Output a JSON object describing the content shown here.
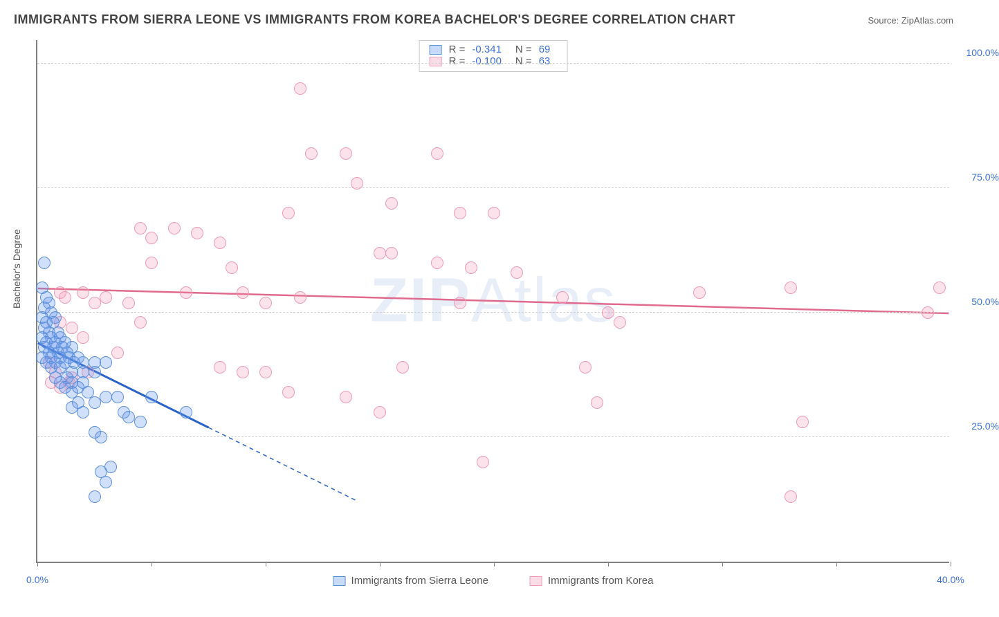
{
  "title": "IMMIGRANTS FROM SIERRA LEONE VS IMMIGRANTS FROM KOREA BACHELOR'S DEGREE CORRELATION CHART",
  "source": "Source: ZipAtlas.com",
  "ylabel": "Bachelor's Degree",
  "watermark_a": "ZIP",
  "watermark_b": "Atlas",
  "chart": {
    "type": "scatter-correlation",
    "background_color": "#ffffff",
    "grid_color": "#d0d0d0",
    "axis_color": "#808080",
    "tick_label_color": "#3b6fd6",
    "xlim": [
      0,
      40
    ],
    "ylim": [
      0,
      105
    ],
    "xticks": [
      0,
      5,
      10,
      15,
      20,
      25,
      30,
      35,
      40
    ],
    "xtick_labels": [
      "0.0%",
      "",
      "",
      "",
      "",
      "",
      "",
      "",
      "40.0%"
    ],
    "yticks": [
      25,
      50,
      75,
      100
    ],
    "ytick_labels": [
      "25.0%",
      "50.0%",
      "75.0%",
      "100.0%"
    ],
    "series_a": {
      "name": "Immigrants from Sierra Leone",
      "color_fill": "rgba(100,149,237,0.30)",
      "color_stroke": "#5b8fd9",
      "trend_color": "#2b62c9",
      "R": "-0.341",
      "N": "69",
      "trend": {
        "x0": 0,
        "y0": 44,
        "x1": 7.5,
        "y1": 27,
        "extend_x": 14,
        "extend_y": 12
      },
      "points": [
        [
          0.3,
          60
        ],
        [
          0.2,
          55
        ],
        [
          0.4,
          53
        ],
        [
          0.5,
          52
        ],
        [
          0.3,
          51
        ],
        [
          0.6,
          50
        ],
        [
          0.2,
          49
        ],
        [
          0.8,
          49
        ],
        [
          0.4,
          48
        ],
        [
          0.7,
          48
        ],
        [
          0.3,
          47
        ],
        [
          0.5,
          46
        ],
        [
          0.9,
          46
        ],
        [
          0.2,
          45
        ],
        [
          0.6,
          45
        ],
        [
          1.0,
          45
        ],
        [
          0.4,
          44
        ],
        [
          0.8,
          44
        ],
        [
          1.2,
          44
        ],
        [
          0.3,
          43
        ],
        [
          0.7,
          43
        ],
        [
          1.1,
          43
        ],
        [
          1.5,
          43
        ],
        [
          0.5,
          42
        ],
        [
          0.9,
          42
        ],
        [
          1.3,
          42
        ],
        [
          0.2,
          41
        ],
        [
          0.6,
          41
        ],
        [
          1.0,
          41
        ],
        [
          1.4,
          41
        ],
        [
          1.8,
          41
        ],
        [
          0.4,
          40
        ],
        [
          0.8,
          40
        ],
        [
          1.2,
          40
        ],
        [
          1.6,
          40
        ],
        [
          2.0,
          40
        ],
        [
          2.5,
          40
        ],
        [
          3.0,
          40
        ],
        [
          0.6,
          39
        ],
        [
          1.0,
          39
        ],
        [
          1.5,
          38
        ],
        [
          2.0,
          38
        ],
        [
          2.5,
          38
        ],
        [
          0.8,
          37
        ],
        [
          1.3,
          37
        ],
        [
          1.0,
          36
        ],
        [
          1.5,
          36
        ],
        [
          2.0,
          36
        ],
        [
          1.2,
          35
        ],
        [
          1.8,
          35
        ],
        [
          1.5,
          34
        ],
        [
          2.2,
          34
        ],
        [
          3.0,
          33
        ],
        [
          3.5,
          33
        ],
        [
          1.8,
          32
        ],
        [
          2.5,
          32
        ],
        [
          1.5,
          31
        ],
        [
          2.0,
          30
        ],
        [
          3.8,
          30
        ],
        [
          4.0,
          29
        ],
        [
          5.0,
          33
        ],
        [
          6.5,
          30
        ],
        [
          4.5,
          28
        ],
        [
          2.5,
          26
        ],
        [
          2.8,
          25
        ],
        [
          3.2,
          19
        ],
        [
          2.8,
          18
        ],
        [
          3.0,
          16
        ],
        [
          2.5,
          13
        ]
      ]
    },
    "series_b": {
      "name": "Immigrants from Korea",
      "color_fill": "rgba(244,143,177,0.25)",
      "color_stroke": "#ec9ab6",
      "trend_color": "#e06a8e",
      "R": "-0.100",
      "N": "63",
      "trend": {
        "x0": 0,
        "y0": 55,
        "x1": 40,
        "y1": 50
      },
      "points": [
        [
          11.5,
          95
        ],
        [
          12.0,
          82
        ],
        [
          13.5,
          82
        ],
        [
          17.5,
          82
        ],
        [
          14.0,
          76
        ],
        [
          15.5,
          72
        ],
        [
          11.0,
          70
        ],
        [
          18.5,
          70
        ],
        [
          20.0,
          70
        ],
        [
          4.5,
          67
        ],
        [
          6.0,
          67
        ],
        [
          5.0,
          65
        ],
        [
          7.0,
          66
        ],
        [
          8.0,
          64
        ],
        [
          15.0,
          62
        ],
        [
          15.5,
          62
        ],
        [
          5.0,
          60
        ],
        [
          8.5,
          59
        ],
        [
          17.5,
          60
        ],
        [
          19.0,
          59
        ],
        [
          21.0,
          58
        ],
        [
          1.0,
          54
        ],
        [
          1.2,
          53
        ],
        [
          2.0,
          54
        ],
        [
          2.5,
          52
        ],
        [
          3.0,
          53
        ],
        [
          4.0,
          52
        ],
        [
          6.5,
          54
        ],
        [
          9.0,
          54
        ],
        [
          10.0,
          52
        ],
        [
          11.5,
          53
        ],
        [
          18.5,
          52
        ],
        [
          23.0,
          53
        ],
        [
          25.0,
          50
        ],
        [
          25.5,
          48
        ],
        [
          29.0,
          54
        ],
        [
          33.0,
          55
        ],
        [
          39.5,
          55
        ],
        [
          39.0,
          50
        ],
        [
          1.0,
          48
        ],
        [
          1.5,
          47
        ],
        [
          2.0,
          45
        ],
        [
          3.5,
          42
        ],
        [
          0.5,
          40
        ],
        [
          0.8,
          38
        ],
        [
          1.5,
          37
        ],
        [
          8.0,
          39
        ],
        [
          9.0,
          38
        ],
        [
          10.0,
          38
        ],
        [
          16.0,
          39
        ],
        [
          24.0,
          39
        ],
        [
          11.0,
          34
        ],
        [
          13.5,
          33
        ],
        [
          24.5,
          32
        ],
        [
          15.0,
          30
        ],
        [
          33.5,
          28
        ],
        [
          19.5,
          20
        ],
        [
          33.0,
          13
        ],
        [
          0.6,
          36
        ],
        [
          1.0,
          35
        ],
        [
          1.4,
          36
        ],
        [
          2.2,
          38
        ],
        [
          4.5,
          48
        ]
      ]
    }
  },
  "legend": {
    "a": "Immigrants from Sierra Leone",
    "b": "Immigrants from Korea"
  },
  "stats": {
    "r_label": "R  =",
    "n_label": "N  ="
  }
}
